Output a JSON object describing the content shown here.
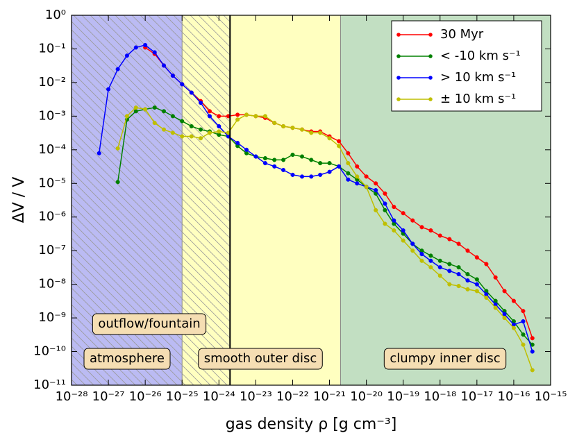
{
  "chart_data": {
    "type": "line",
    "xscale": "log",
    "yscale": "log",
    "xlabel": "gas density ρ [g cm⁻³]",
    "ylabel": "ΔV / V",
    "xlim": [
      1e-28,
      1e-15
    ],
    "ylim": [
      1e-11,
      1
    ],
    "xticks": [
      {
        "value": 1e-28,
        "label": "10⁻²⁸"
      },
      {
        "value": 1e-27,
        "label": "10⁻²⁷"
      },
      {
        "value": 1e-26,
        "label": "10⁻²⁶"
      },
      {
        "value": 1e-25,
        "label": "10⁻²⁵"
      },
      {
        "value": 1e-24,
        "label": "10⁻²⁴"
      },
      {
        "value": 1e-23,
        "label": "10⁻²³"
      },
      {
        "value": 1e-22,
        "label": "10⁻²²"
      },
      {
        "value": 1e-21,
        "label": "10⁻²¹"
      },
      {
        "value": 1e-20,
        "label": "10⁻²⁰"
      },
      {
        "value": 1e-19,
        "label": "10⁻¹⁹"
      },
      {
        "value": 1e-18,
        "label": "10⁻¹⁸"
      },
      {
        "value": 1e-17,
        "label": "10⁻¹⁷"
      },
      {
        "value": 1e-16,
        "label": "10⁻¹⁶"
      },
      {
        "value": 1e-15,
        "label": "10⁻¹⁵"
      }
    ],
    "yticks": [
      {
        "value": 1,
        "label": "10⁰"
      },
      {
        "value": 0.1,
        "label": "10⁻¹"
      },
      {
        "value": 0.01,
        "label": "10⁻²"
      },
      {
        "value": 0.001,
        "label": "10⁻³"
      },
      {
        "value": 0.0001,
        "label": "10⁻⁴"
      },
      {
        "value": 1e-05,
        "label": "10⁻⁵"
      },
      {
        "value": 1e-06,
        "label": "10⁻⁶"
      },
      {
        "value": 1e-07,
        "label": "10⁻⁷"
      },
      {
        "value": 1e-08,
        "label": "10⁻⁸"
      },
      {
        "value": 1e-09,
        "label": "10⁻⁹"
      },
      {
        "value": 1e-10,
        "label": "10⁻¹⁰"
      },
      {
        "value": 1e-11,
        "label": "10⁻¹¹"
      }
    ],
    "regions": [
      {
        "xlim": [
          1e-28,
          1e-25
        ],
        "color": "#bbbbf3"
      },
      {
        "xlim": [
          1e-25,
          2e-21
        ],
        "color": "#ffffc0"
      },
      {
        "xlim": [
          2e-21,
          1e-15
        ],
        "color": "#c2dfc2"
      }
    ],
    "hatch_xlim": [
      1e-28,
      2e-24
    ],
    "vline": 2e-24,
    "annotations": [
      "outflow/fountain",
      "atmosphere",
      "smooth outer disc",
      "clumpy inner disc"
    ],
    "legend": "upper right",
    "x": [
      3.2e-28,
      5.6e-28,
      1e-27,
      1.8e-27,
      3.2e-27,
      5.6e-27,
      1e-26,
      1.8e-26,
      3.2e-26,
      5.6e-26,
      1e-25,
      1.8e-25,
      3.2e-25,
      5.6e-25,
      1e-24,
      1.8e-24,
      3.2e-24,
      5.6e-24,
      1e-23,
      1.8e-23,
      3.2e-23,
      5.6e-23,
      1e-22,
      1.8e-22,
      3.2e-22,
      5.6e-22,
      1e-21,
      1.8e-21,
      3.2e-21,
      5.6e-21,
      1e-20,
      1.8e-20,
      3.2e-20,
      5.6e-20,
      1e-19,
      1.8e-19,
      3.2e-19,
      5.6e-19,
      1e-18,
      1.8e-18,
      3.2e-18,
      5.6e-18,
      1e-17,
      1.8e-17,
      3.2e-17,
      5.6e-17,
      1e-16,
      1.8e-16,
      3.2e-16
    ],
    "series": [
      {
        "name": "30 Myr",
        "color": "#ff0000",
        "values": [
          null,
          null,
          null,
          null,
          null,
          null,
          0.11,
          0.071,
          0.032,
          0.016,
          0.0089,
          0.005,
          0.0028,
          0.0014,
          0.001,
          0.001,
          0.0011,
          0.0011,
          0.001,
          0.00089,
          0.00063,
          0.0005,
          0.00045,
          0.0004,
          0.00035,
          0.00035,
          0.00025,
          0.00018,
          7.9e-05,
          3.2e-05,
          1.6e-05,
          1e-05,
          5e-06,
          2e-06,
          1.3e-06,
          7.9e-07,
          5e-07,
          4e-07,
          2.8e-07,
          2.2e-07,
          1.6e-07,
          1e-07,
          6.3e-08,
          4e-08,
          1.6e-08,
          6.3e-09,
          3.2e-09,
          1.6e-09,
          2.5e-10
        ]
      },
      {
        "name": "< -10 km s⁻¹",
        "color": "#008000",
        "values": [
          null,
          null,
          null,
          1.1e-05,
          0.00079,
          0.0014,
          0.0016,
          0.0018,
          0.0014,
          0.001,
          0.00071,
          0.0005,
          0.0004,
          0.00035,
          0.00028,
          0.00025,
          0.00013,
          7.9e-05,
          6.3e-05,
          5.6e-05,
          5e-05,
          5e-05,
          7.1e-05,
          6.3e-05,
          5e-05,
          4e-05,
          4e-05,
          3.2e-05,
          2e-05,
          1.3e-05,
          7.9e-06,
          5e-06,
          1.6e-06,
          6.3e-07,
          3.2e-07,
          1.6e-07,
          1e-07,
          7.1e-08,
          5e-08,
          4e-08,
          3.2e-08,
          2e-08,
          1.4e-08,
          6.3e-09,
          3.2e-09,
          1.6e-09,
          7.9e-10,
          3.2e-10,
          1.6e-10
        ]
      },
      {
        "name": "> 10 km s⁻¹",
        "color": "#0000ff",
        "values": [
          null,
          7.9e-05,
          0.0063,
          0.025,
          0.063,
          0.11,
          0.13,
          0.079,
          0.032,
          0.016,
          0.0089,
          0.005,
          0.0025,
          0.001,
          0.0005,
          0.00025,
          0.00016,
          0.0001,
          6.3e-05,
          4e-05,
          3.2e-05,
          2.5e-05,
          1.8e-05,
          1.6e-05,
          1.6e-05,
          1.8e-05,
          2.2e-05,
          3.2e-05,
          1.3e-05,
          1e-05,
          7.9e-06,
          6.3e-06,
          2.5e-06,
          7.9e-07,
          4e-07,
          1.6e-07,
          7.9e-08,
          5e-08,
          3.2e-08,
          2.5e-08,
          2e-08,
          1.3e-08,
          1e-08,
          5e-09,
          2.5e-09,
          1.3e-09,
          6.3e-10,
          7.9e-10,
          1e-10
        ]
      },
      {
        "name": "± 10 km s⁻¹",
        "color": "#bfbf00",
        "values": [
          null,
          null,
          null,
          0.00011,
          0.001,
          0.0018,
          0.0016,
          0.00063,
          0.0004,
          0.00032,
          0.00025,
          0.00025,
          0.00022,
          0.00032,
          0.00035,
          0.00032,
          0.00079,
          0.0011,
          0.001,
          0.001,
          0.00063,
          0.0005,
          0.00045,
          0.0004,
          0.00032,
          0.00032,
          0.00022,
          0.00013,
          4e-05,
          1.6e-05,
          7.9e-06,
          1.6e-06,
          6.3e-07,
          4e-07,
          2e-07,
          1e-07,
          5e-08,
          3.2e-08,
          1.8e-08,
          1e-08,
          8.9e-09,
          7.1e-09,
          6.3e-09,
          4e-09,
          2e-09,
          1e-09,
          5e-10,
          1.6e-10,
          2.8e-11
        ]
      }
    ]
  }
}
